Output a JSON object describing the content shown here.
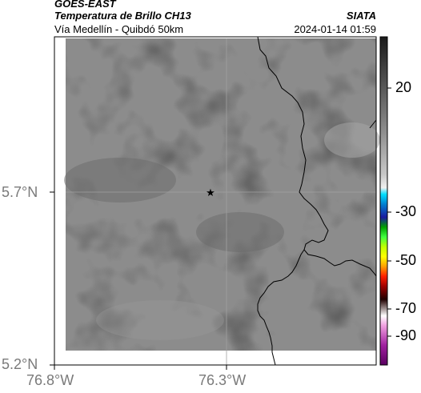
{
  "header": {
    "title": "GOES-EAST",
    "subtitle": "Temperatura de Brillo CH13",
    "location": "Vía Medellín - Quibdó 50km",
    "organization": "SIATA",
    "timestamp": "2024-01-14 01:59"
  },
  "axes": {
    "lat_ticks": [
      "5.7°N",
      "5.2°N"
    ],
    "lon_ticks": [
      "76.8°W",
      "76.3°W"
    ]
  },
  "colorbar": {
    "tick_labels": [
      "20",
      "-30",
      "-50",
      "-70",
      "-90"
    ]
  },
  "marker": {
    "symbol": "★",
    "name": "reference-point"
  },
  "colors": {
    "background_gray": "#8c8c8c",
    "frame": "#000000",
    "gridline": "#a0a0a0",
    "tick_label": "#7a7a7a"
  }
}
